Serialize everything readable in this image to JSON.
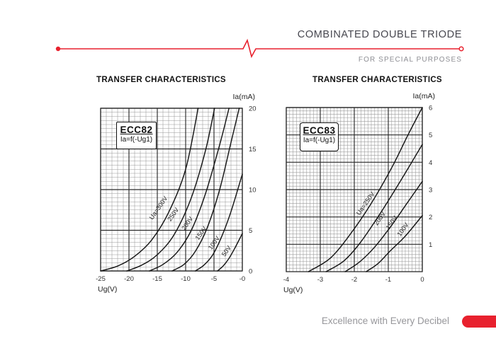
{
  "page": {
    "accent_red": "#e8212e",
    "background": "#ffffff"
  },
  "header": {
    "title": "COMBINATED DOUBLE TRIODE",
    "subtitle": "FOR SPECIAL PURPOSES"
  },
  "footer": {
    "tagline": "Excellence with Every Decibel"
  },
  "chart_data": [
    {
      "type": "line",
      "title": "TRANSFER CHARACTERISTICS",
      "tube": "ECC82",
      "function_label": "Ia=f(-Ug1)",
      "xlabel": "Ug(V)",
      "ylabel": "Ia(mA)",
      "xlim": [
        -25,
        0
      ],
      "ylim": [
        0,
        20
      ],
      "x_minor": 1,
      "y_minor": 0.5,
      "x_ticks": [
        {
          "v": -25,
          "label": "-25"
        },
        {
          "v": -20,
          "label": "-20"
        },
        {
          "v": -15,
          "label": "-15"
        },
        {
          "v": -10,
          "label": "-10"
        },
        {
          "v": -5,
          "label": "-5"
        },
        {
          "v": 0,
          "label": "-0"
        }
      ],
      "y_ticks": [
        {
          "v": 0,
          "label": "0"
        },
        {
          "v": 5,
          "label": "5"
        },
        {
          "v": 10,
          "label": "10"
        },
        {
          "v": 15,
          "label": "15"
        },
        {
          "v": 20,
          "label": "20"
        }
      ],
      "series": [
        {
          "name": "Ua=300V",
          "label_pos": [
            -14.5,
            7.6
          ],
          "label_rot": -55,
          "points": [
            [
              -25,
              0
            ],
            [
              -22,
              0.6
            ],
            [
              -19,
              1.8
            ],
            [
              -16,
              3.8
            ],
            [
              -13,
              7.2
            ],
            [
              -10,
              12.5
            ],
            [
              -7.8,
              20
            ]
          ]
        },
        {
          "name": "250V",
          "label_pos": [
            -11.9,
            6.8
          ],
          "label_rot": -55,
          "points": [
            [
              -20.4,
              0
            ],
            [
              -17.8,
              0.7
            ],
            [
              -15,
              2
            ],
            [
              -12,
              4.5
            ],
            [
              -9,
              9
            ],
            [
              -6.5,
              14.8
            ],
            [
              -4.9,
              20
            ]
          ]
        },
        {
          "name": "200V",
          "label_pos": [
            -9.4,
            5.7
          ],
          "label_rot": -55,
          "points": [
            [
              -16.4,
              0
            ],
            [
              -14,
              0.8
            ],
            [
              -11.5,
              2.3
            ],
            [
              -9,
              5
            ],
            [
              -6.5,
              9.5
            ],
            [
              -4,
              15.5
            ],
            [
              -2.35,
              20
            ]
          ]
        },
        {
          "name": "150V",
          "label_pos": [
            -7.0,
            4.5
          ],
          "label_rot": -55,
          "points": [
            [
              -12.4,
              0
            ],
            [
              -10.3,
              0.8
            ],
            [
              -8.3,
              2.4
            ],
            [
              -6.2,
              5.3
            ],
            [
              -4,
              10
            ],
            [
              -2,
              15.8
            ],
            [
              -0.55,
              20
            ]
          ]
        },
        {
          "name": "100V",
          "label_pos": [
            -4.7,
            3.3
          ],
          "label_rot": -55,
          "points": [
            [
              -8.3,
              0
            ],
            [
              -6.8,
              0.7
            ],
            [
              -5.2,
              2
            ],
            [
              -3.6,
              4.3
            ],
            [
              -2,
              7.3
            ],
            [
              0,
              11.9
            ]
          ]
        },
        {
          "name": "50V",
          "label_pos": [
            -2.5,
            2.3
          ],
          "label_rot": -55,
          "points": [
            [
              -4.4,
              0
            ],
            [
              -3.4,
              0.6
            ],
            [
              -2.4,
              1.5
            ],
            [
              -1.4,
              2.7
            ],
            [
              0,
              4.6
            ]
          ]
        }
      ]
    },
    {
      "type": "line",
      "title": "TRANSFER CHARACTERISTICS",
      "tube": "ECC83",
      "function_label": "Ia=f(-Ug1)",
      "xlabel": "Ug(V)",
      "ylabel": "Ia(mA)",
      "xlim": [
        -4,
        0
      ],
      "ylim": [
        0,
        6
      ],
      "x_minor": 0.1,
      "y_minor": 0.125,
      "x_ticks": [
        {
          "v": -4,
          "label": "-4"
        },
        {
          "v": -3,
          "label": "-3"
        },
        {
          "v": -2,
          "label": "-2"
        },
        {
          "v": -1,
          "label": "-1"
        },
        {
          "v": 0,
          "label": "0"
        }
      ],
      "y_ticks": [
        {
          "v": 1,
          "label": "1"
        },
        {
          "v": 2,
          "label": "2"
        },
        {
          "v": 3,
          "label": "3"
        },
        {
          "v": 4,
          "label": "4"
        },
        {
          "v": 5,
          "label": "5"
        },
        {
          "v": 6,
          "label": "6"
        }
      ],
      "series": [
        {
          "name": "Ua=250V",
          "label_pos": [
            -1.62,
            2.45
          ],
          "label_rot": -55,
          "points": [
            [
              -3.35,
              0
            ],
            [
              -2.7,
              0.5
            ],
            [
              -2.1,
              1.4
            ],
            [
              -1.5,
              2.5
            ],
            [
              -0.9,
              3.8
            ],
            [
              -0.4,
              5.05
            ],
            [
              0,
              6
            ]
          ]
        },
        {
          "name": "200V",
          "label_pos": [
            -1.2,
            1.9
          ],
          "label_rot": -55,
          "points": [
            [
              -2.83,
              0
            ],
            [
              -2.3,
              0.4
            ],
            [
              -1.8,
              1.1
            ],
            [
              -1.2,
              2.2
            ],
            [
              -0.6,
              3.4
            ],
            [
              0,
              4.65
            ]
          ]
        },
        {
          "name": "150V",
          "label_pos": [
            -0.85,
            1.75
          ],
          "label_rot": -55,
          "points": [
            [
              -2.27,
              0
            ],
            [
              -1.85,
              0.35
            ],
            [
              -1.4,
              0.9
            ],
            [
              -0.9,
              1.7
            ],
            [
              -0.45,
              2.5
            ],
            [
              0,
              3.3
            ]
          ]
        },
        {
          "name": "100V",
          "label_pos": [
            -0.52,
            1.5
          ],
          "label_rot": -55,
          "points": [
            [
              -1.65,
              0
            ],
            [
              -1.3,
              0.3
            ],
            [
              -0.95,
              0.75
            ],
            [
              -0.5,
              1.3
            ],
            [
              0,
              2.05
            ]
          ]
        }
      ]
    }
  ]
}
